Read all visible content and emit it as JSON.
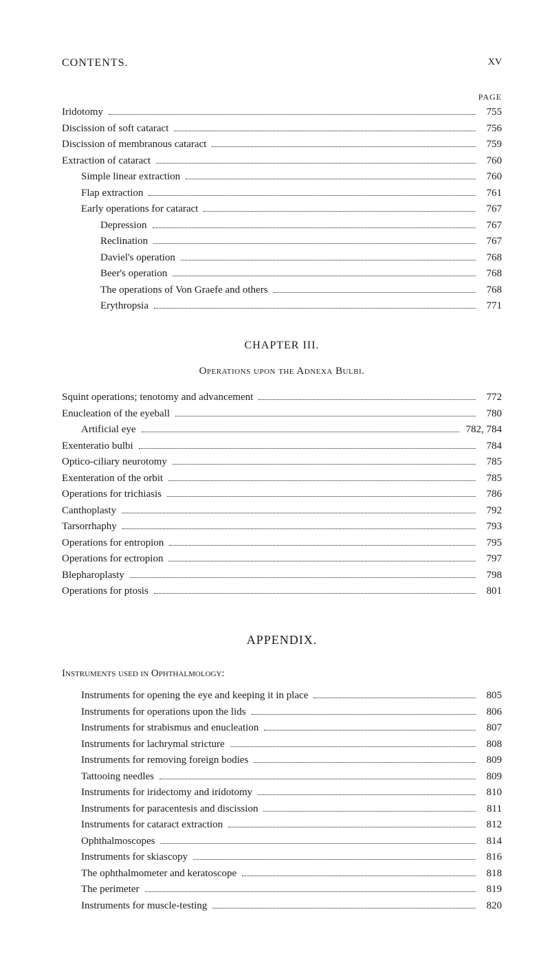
{
  "header": {
    "title": "CONTENTS.",
    "pagenum": "XV"
  },
  "page_label": "PAGE",
  "section1": {
    "items": [
      {
        "label": "Iridotomy",
        "indent": 0,
        "page": "755"
      },
      {
        "label": "Discission of soft cataract",
        "indent": 0,
        "page": "756"
      },
      {
        "label": "Discission of membranous cataract",
        "indent": 0,
        "page": "759"
      },
      {
        "label": "Extraction of cataract",
        "indent": 0,
        "page": "760"
      },
      {
        "label": "Simple linear extraction",
        "indent": 1,
        "page": "760"
      },
      {
        "label": "Flap extraction",
        "indent": 1,
        "page": "761"
      },
      {
        "label": "Early operations for cataract",
        "indent": 1,
        "page": "767"
      },
      {
        "label": "Depression",
        "indent": 2,
        "page": "767"
      },
      {
        "label": "Reclination",
        "indent": 2,
        "page": "767"
      },
      {
        "label": "Daviel's operation",
        "indent": 2,
        "page": "768"
      },
      {
        "label": "Beer's operation",
        "indent": 2,
        "page": "768"
      },
      {
        "label": "The operations of Von Graefe and others",
        "indent": 2,
        "page": "768"
      },
      {
        "label": "Erythropsia",
        "indent": 2,
        "page": "771"
      }
    ]
  },
  "chapter3": {
    "heading": "CHAPTER III.",
    "sub": "Operations upon the Adnexa Bulbi.",
    "items": [
      {
        "label": "Squint operations; tenotomy and advancement",
        "indent": 0,
        "page": "772"
      },
      {
        "label": "Enucleation of the eyeball",
        "indent": 0,
        "page": "780"
      },
      {
        "label": "Artificial eye",
        "indent": 1,
        "page": "782, 784"
      },
      {
        "label": "Exenteratio bulbi",
        "indent": 0,
        "page": "784"
      },
      {
        "label": "Optico-ciliary neurotomy",
        "indent": 0,
        "page": "785"
      },
      {
        "label": "Exenteration of the orbit",
        "indent": 0,
        "page": "785"
      },
      {
        "label": "Operations for trichiasis",
        "indent": 0,
        "page": "786"
      },
      {
        "label": "Canthoplasty",
        "indent": 0,
        "page": "792"
      },
      {
        "label": "Tarsorrhaphy",
        "indent": 0,
        "page": "793"
      },
      {
        "label": "Operations for entropion",
        "indent": 0,
        "page": "795"
      },
      {
        "label": "Operations for ectropion",
        "indent": 0,
        "page": "797"
      },
      {
        "label": "Blepharoplasty",
        "indent": 0,
        "page": "798"
      },
      {
        "label": "Operations for ptosis",
        "indent": 0,
        "page": "801"
      }
    ]
  },
  "appendix": {
    "heading": "APPENDIX.",
    "section_heading": "Instruments used in Ophthalmology:",
    "items": [
      {
        "label": "Instruments for opening the eye and keeping it in place",
        "indent": 1,
        "page": "805"
      },
      {
        "label": "Instruments for operations upon the lids",
        "indent": 1,
        "page": "806"
      },
      {
        "label": "Instruments for strabismus and enucleation",
        "indent": 1,
        "page": "807"
      },
      {
        "label": "Instruments for lachrymal stricture",
        "indent": 1,
        "page": "808"
      },
      {
        "label": "Instruments for removing foreign bodies",
        "indent": 1,
        "page": "809"
      },
      {
        "label": "Tattooing needles",
        "indent": 1,
        "page": "809"
      },
      {
        "label": "Instruments for iridectomy and iridotomy",
        "indent": 1,
        "page": "810"
      },
      {
        "label": "Instruments for paracentesis and discission",
        "indent": 1,
        "page": "811"
      },
      {
        "label": "Instruments for cataract extraction",
        "indent": 1,
        "page": "812"
      },
      {
        "label": "Ophthalmoscopes",
        "indent": 1,
        "page": "814"
      },
      {
        "label": "Instruments for skiascopy",
        "indent": 1,
        "page": "816"
      },
      {
        "label": "The ophthalmometer and keratoscope",
        "indent": 1,
        "page": "818"
      },
      {
        "label": "The perimeter",
        "indent": 1,
        "page": "819"
      },
      {
        "label": "Instruments for muscle-testing",
        "indent": 1,
        "page": "820"
      }
    ]
  }
}
